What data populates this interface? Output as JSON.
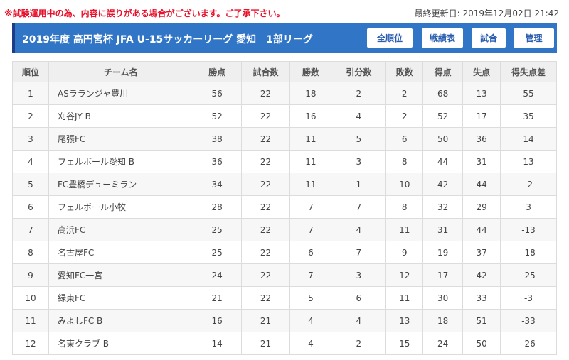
{
  "notice": "※試験運用中の為、内容に誤りがある場合がございます。ご了承下さい。",
  "last_updated": "最終更新日: 2019年12月02日 21:42",
  "header": {
    "title": "2019年度 高円宮杯 JFA U-15サッカーリーグ 愛知　1部リーグ",
    "buttons": [
      "全順位",
      "戦績表",
      "試合",
      "管理"
    ]
  },
  "table": {
    "columns": [
      "順位",
      "チーム名",
      "勝点",
      "試合数",
      "勝数",
      "引分数",
      "敗数",
      "得点",
      "失点",
      "得失点差"
    ],
    "rows": [
      [
        "1",
        "ASラランジャ豊川",
        "56",
        "22",
        "18",
        "2",
        "2",
        "68",
        "13",
        "55"
      ],
      [
        "2",
        "刈谷JY B",
        "52",
        "22",
        "16",
        "4",
        "2",
        "52",
        "17",
        "35"
      ],
      [
        "3",
        "尾張FC",
        "38",
        "22",
        "11",
        "5",
        "6",
        "50",
        "36",
        "14"
      ],
      [
        "4",
        "フェルボール愛知 B",
        "36",
        "22",
        "11",
        "3",
        "8",
        "44",
        "31",
        "13"
      ],
      [
        "5",
        "FC豊橋デューミラン",
        "34",
        "22",
        "11",
        "1",
        "10",
        "42",
        "44",
        "-2"
      ],
      [
        "6",
        "フェルボール小牧",
        "28",
        "22",
        "7",
        "7",
        "8",
        "32",
        "29",
        "3"
      ],
      [
        "7",
        "高浜FC",
        "25",
        "22",
        "7",
        "4",
        "11",
        "31",
        "44",
        "-13"
      ],
      [
        "8",
        "名古屋FC",
        "25",
        "22",
        "6",
        "7",
        "9",
        "19",
        "37",
        "-18"
      ],
      [
        "9",
        "愛知FC一宮",
        "24",
        "22",
        "7",
        "3",
        "12",
        "17",
        "42",
        "-25"
      ],
      [
        "10",
        "緑東FC",
        "21",
        "22",
        "5",
        "6",
        "11",
        "30",
        "33",
        "-3"
      ],
      [
        "11",
        "みよしFC B",
        "16",
        "21",
        "4",
        "4",
        "13",
        "18",
        "51",
        "-33"
      ],
      [
        "12",
        "名東クラブ B",
        "14",
        "21",
        "4",
        "2",
        "15",
        "24",
        "50",
        "-26"
      ]
    ]
  },
  "colors": {
    "header_bg": "#3175c6",
    "header_accent": "#1d3d86",
    "notice_text": "#e8102a",
    "button_text": "#2a5db0"
  }
}
